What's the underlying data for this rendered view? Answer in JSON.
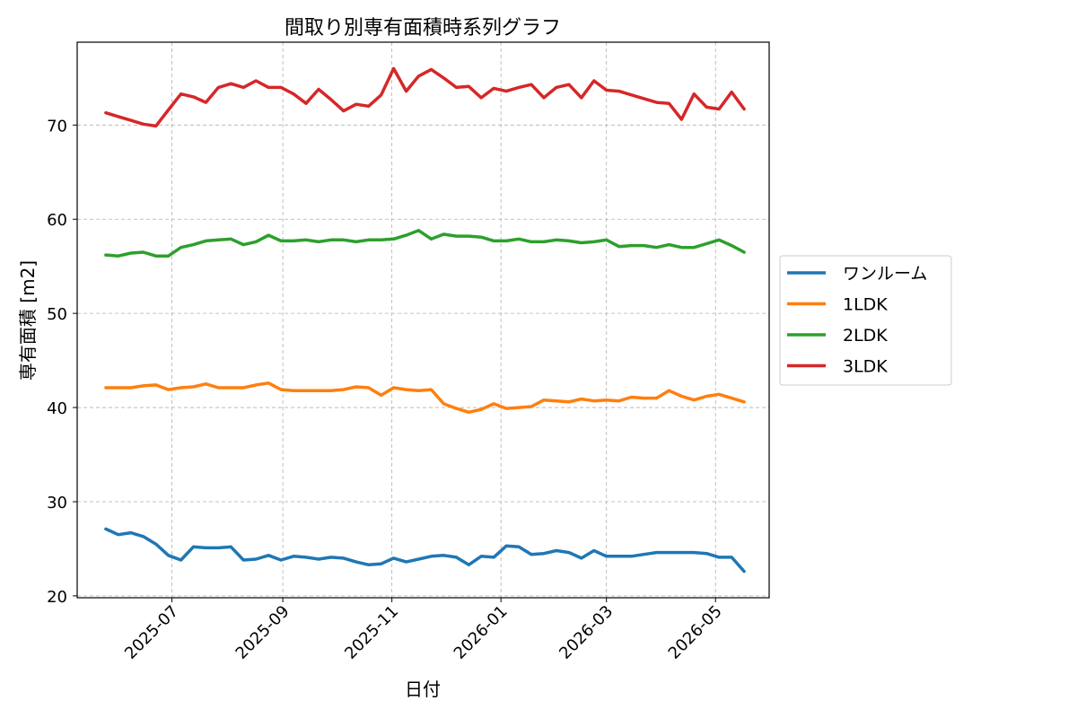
{
  "chart_data": {
    "type": "line",
    "title": "間取り別専有面積時系列グラフ",
    "xlabel": "日付",
    "ylabel": "専有面積 [m2]",
    "ylim": [
      19.8,
      78.8
    ],
    "xlim": [
      "2025-05-09",
      "2026-05-31"
    ],
    "x_ticks": [
      "2025-07",
      "2025-09",
      "2025-11",
      "2026-01",
      "2026-03",
      "2026-05"
    ],
    "y_ticks": [
      20,
      30,
      40,
      50,
      60,
      70
    ],
    "grid": true,
    "legend_position": "outside-right",
    "x": [
      "2025-05-25",
      "2025-06-01",
      "2025-06-08",
      "2025-06-15",
      "2025-06-22",
      "2025-06-29",
      "2025-07-06",
      "2025-07-13",
      "2025-07-20",
      "2025-07-27",
      "2025-08-03",
      "2025-08-10",
      "2025-08-17",
      "2025-08-24",
      "2025-08-31",
      "2025-09-07",
      "2025-09-14",
      "2025-09-21",
      "2025-09-28",
      "2025-10-05",
      "2025-10-12",
      "2025-10-19",
      "2025-10-26",
      "2025-11-02",
      "2025-11-09",
      "2025-11-16",
      "2025-11-23",
      "2025-11-30",
      "2025-12-07",
      "2025-12-14",
      "2025-12-21",
      "2025-12-28",
      "2026-01-04",
      "2026-01-11",
      "2026-01-18",
      "2026-01-25",
      "2026-02-01",
      "2026-02-08",
      "2026-02-15",
      "2026-02-22",
      "2026-03-01",
      "2026-03-08",
      "2026-03-15",
      "2026-03-22",
      "2026-03-29",
      "2026-04-05",
      "2026-04-12",
      "2026-04-19",
      "2026-04-26",
      "2026-05-03",
      "2026-05-10",
      "2026-05-17"
    ],
    "series": [
      {
        "name": "ワンルーム",
        "color": "#1f77b4",
        "values": [
          27.1,
          26.5,
          26.7,
          26.3,
          25.5,
          24.3,
          23.8,
          25.2,
          25.1,
          25.1,
          25.2,
          23.8,
          23.9,
          24.3,
          23.8,
          24.2,
          24.1,
          23.9,
          24.1,
          24.0,
          23.6,
          23.3,
          23.4,
          24.0,
          23.6,
          23.9,
          24.2,
          24.3,
          24.1,
          23.3,
          24.2,
          24.1,
          25.3,
          25.2,
          24.4,
          24.5,
          24.8,
          24.6,
          24.0,
          24.8,
          24.2,
          24.2,
          24.2,
          24.4,
          24.6,
          24.6,
          24.6,
          24.6,
          24.5,
          24.1,
          24.1,
          22.6
        ]
      },
      {
        "name": "1LDK",
        "color": "#ff7f0e",
        "values": [
          42.1,
          42.1,
          42.1,
          42.3,
          42.4,
          41.9,
          42.1,
          42.2,
          42.5,
          42.1,
          42.1,
          42.1,
          42.4,
          42.6,
          41.9,
          41.8,
          41.8,
          41.8,
          41.8,
          41.9,
          42.2,
          42.1,
          41.3,
          42.1,
          41.9,
          41.8,
          41.9,
          40.4,
          39.9,
          39.5,
          39.8,
          40.4,
          39.9,
          40.0,
          40.1,
          40.8,
          40.7,
          40.6,
          40.9,
          40.7,
          40.8,
          40.7,
          41.1,
          41.0,
          41.0,
          41.8,
          41.2,
          40.8,
          41.2,
          41.4,
          41.0,
          40.6
        ]
      },
      {
        "name": "2LDK",
        "color": "#2ca02c",
        "values": [
          56.2,
          56.1,
          56.4,
          56.5,
          56.1,
          56.1,
          57.0,
          57.3,
          57.7,
          57.8,
          57.9,
          57.3,
          57.6,
          58.3,
          57.7,
          57.7,
          57.8,
          57.6,
          57.8,
          57.8,
          57.6,
          57.8,
          57.8,
          57.9,
          58.3,
          58.8,
          57.9,
          58.4,
          58.2,
          58.2,
          58.1,
          57.7,
          57.7,
          57.9,
          57.6,
          57.6,
          57.8,
          57.7,
          57.5,
          57.6,
          57.8,
          57.1,
          57.2,
          57.2,
          57.0,
          57.3,
          57.0,
          57.0,
          57.4,
          57.8,
          57.2,
          56.5
        ]
      },
      {
        "name": "3LDK",
        "color": "#d62728",
        "values": [
          71.3,
          70.9,
          70.5,
          70.1,
          69.9,
          71.6,
          73.3,
          73.0,
          72.4,
          74.0,
          74.4,
          74.0,
          74.7,
          74.0,
          74.0,
          73.3,
          72.3,
          73.8,
          72.7,
          71.5,
          72.2,
          72.0,
          73.2,
          76.0,
          73.6,
          75.2,
          75.9,
          75.0,
          74.0,
          74.1,
          72.9,
          73.9,
          73.6,
          74.0,
          74.3,
          72.9,
          74.0,
          74.3,
          72.9,
          74.7,
          73.7,
          73.6,
          73.2,
          72.8,
          72.4,
          72.3,
          70.6,
          73.3,
          71.9,
          71.7,
          73.5,
          71.7
        ]
      }
    ]
  }
}
